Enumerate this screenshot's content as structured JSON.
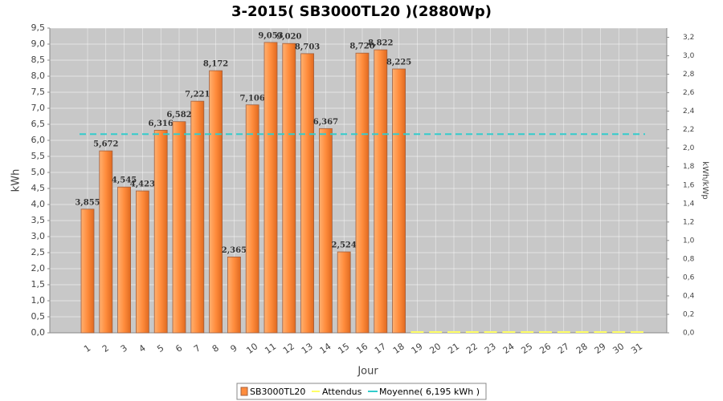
{
  "chart_data": {
    "type": "bar",
    "title": "3-2015( SB3000TL20 )(2880Wp)",
    "x_label": "Jour",
    "y_label": "kWh",
    "y2_label": "kWh/kWp",
    "categories": [
      "1",
      "2",
      "3",
      "4",
      "5",
      "6",
      "7",
      "8",
      "9",
      "10",
      "11",
      "12",
      "13",
      "14",
      "15",
      "16",
      "17",
      "18",
      "19",
      "20",
      "21",
      "22",
      "23",
      "24",
      "25",
      "26",
      "27",
      "28",
      "29",
      "30",
      "31"
    ],
    "series": [
      {
        "name": "SB3000TL20",
        "color": "#ff8c3c",
        "values": [
          3.855,
          5.672,
          4.545,
          4.423,
          6.316,
          6.582,
          7.221,
          8.172,
          2.365,
          7.106,
          9.053,
          9.02,
          8.703,
          6.367,
          2.524,
          8.72,
          8.822,
          8.225,
          null,
          null,
          null,
          null,
          null,
          null,
          null,
          null,
          null,
          null,
          null,
          null,
          null
        ],
        "value_labels": [
          "3,855",
          "5,672",
          "4,545",
          "4,423",
          "6,316",
          "6,582",
          "7,221",
          "8,172",
          "2,365",
          "7,106",
          "9,053",
          "9,020",
          "8,703",
          "6,367",
          "2,524",
          "8,720",
          "8,822",
          "8,225",
          null,
          null,
          null,
          null,
          null,
          null,
          null,
          null,
          null,
          null,
          null,
          null,
          null
        ]
      },
      {
        "name": "Attendus",
        "color": "#ffff66",
        "values": [
          null,
          null,
          null,
          null,
          null,
          null,
          null,
          null,
          null,
          null,
          null,
          null,
          null,
          null,
          null,
          null,
          null,
          null,
          0,
          0,
          0,
          0,
          0,
          0,
          0,
          0,
          0,
          0,
          0,
          0,
          0
        ]
      }
    ],
    "average": {
      "name": "Moyenne( 6,195 kWh )",
      "value": 6.195,
      "color": "#33cccc"
    },
    "ylim": [
      0,
      9.5
    ],
    "yticks": [
      {
        "value": 0,
        "label": "0,0"
      },
      {
        "value": 0.5,
        "label": "0,5"
      },
      {
        "value": 1,
        "label": "1,0"
      },
      {
        "value": 1.5,
        "label": "1,5"
      },
      {
        "value": 2,
        "label": "2,0"
      },
      {
        "value": 2.5,
        "label": "2,5"
      },
      {
        "value": 3,
        "label": "3,0"
      },
      {
        "value": 3.5,
        "label": "3,5"
      },
      {
        "value": 4,
        "label": "4,0"
      },
      {
        "value": 4.5,
        "label": "4,5"
      },
      {
        "value": 5,
        "label": "5,0"
      },
      {
        "value": 5.5,
        "label": "5,5"
      },
      {
        "value": 6,
        "label": "6,0"
      },
      {
        "value": 6.5,
        "label": "6,5"
      },
      {
        "value": 7,
        "label": "7,0"
      },
      {
        "value": 7.5,
        "label": "7,5"
      },
      {
        "value": 8,
        "label": "8,0"
      },
      {
        "value": 8.5,
        "label": "8,5"
      },
      {
        "value": 9,
        "label": "9,0"
      },
      {
        "value": 9.5,
        "label": "9,5"
      }
    ],
    "y2lim": [
      0,
      3.3
    ],
    "y2ticks": [
      {
        "value": 0,
        "label": "0,0"
      },
      {
        "value": 0.2,
        "label": "0,2"
      },
      {
        "value": 0.4,
        "label": "0,4"
      },
      {
        "value": 0.6,
        "label": "0,6"
      },
      {
        "value": 0.8,
        "label": "0,8"
      },
      {
        "value": 1,
        "label": "1,0"
      },
      {
        "value": 1.2,
        "label": "1,2"
      },
      {
        "value": 1.4,
        "label": "1,4"
      },
      {
        "value": 1.6,
        "label": "1,6"
      },
      {
        "value": 1.8,
        "label": "1,8"
      },
      {
        "value": 2,
        "label": "2,0"
      },
      {
        "value": 2.2,
        "label": "2,2"
      },
      {
        "value": 2.4,
        "label": "2,4"
      },
      {
        "value": 2.6,
        "label": "2,6"
      },
      {
        "value": 2.8,
        "label": "2,8"
      },
      {
        "value": 3,
        "label": "3,0"
      },
      {
        "value": 3.2,
        "label": "3,2"
      }
    ],
    "grid": true
  }
}
